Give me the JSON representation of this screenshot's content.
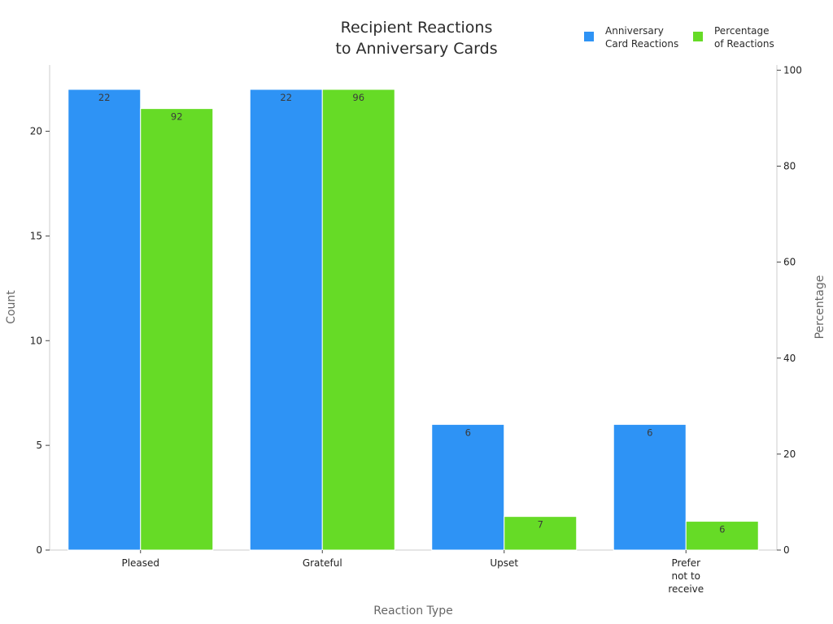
{
  "chart_data": {
    "type": "bar",
    "title": "Recipient Reactions\nto Anniversary Cards",
    "categories": [
      "Pleased",
      "Grateful",
      "Upset",
      "Prefer\nnot to\nreceive"
    ],
    "xlabel": "Reaction Type",
    "ylabel": "Count",
    "y2label": "Percentage",
    "ylim": [
      0,
      23
    ],
    "y2lim": [
      0,
      101
    ],
    "yticks": [
      0,
      5,
      10,
      15,
      20
    ],
    "y2ticks": [
      0,
      20,
      40,
      60,
      80,
      100
    ],
    "grid": false,
    "legend_position": "top-right",
    "series": [
      {
        "name": "Anniversary\nCard Reactions",
        "axis": "left",
        "values": [
          22,
          22,
          6,
          6
        ],
        "color": "#2e93f5"
      },
      {
        "name": "Percentage\nof Reactions",
        "axis": "right",
        "values": [
          92,
          96,
          7,
          6
        ],
        "color": "#66db26"
      }
    ]
  }
}
